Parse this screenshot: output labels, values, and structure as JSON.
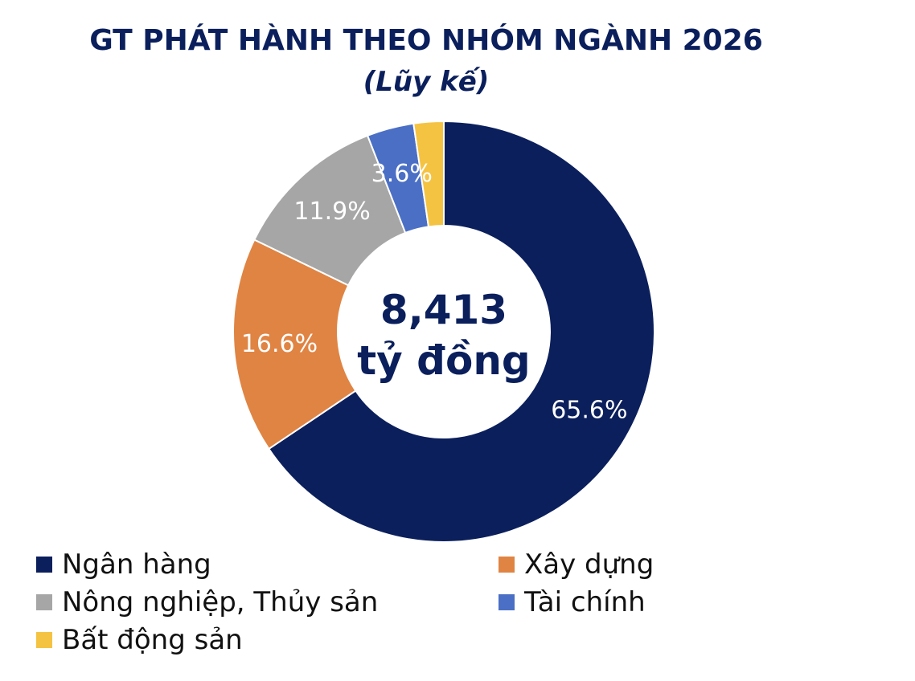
{
  "chart_data": {
    "type": "pie",
    "title": "GT PHÁT HÀNH THEO NHÓM NGÀNH 2026",
    "subtitle": "(Lũy kế)",
    "center_label": {
      "value": "8,413",
      "unit": "tỷ đồng"
    },
    "categories": [
      "Ngân hàng",
      "Xây dựng",
      "Nông nghiệp, Thủy sản",
      "Tài chính",
      "Bất động sản"
    ],
    "values": [
      65.6,
      16.6,
      11.9,
      3.6,
      2.3
    ],
    "data_labels": [
      "65.6%",
      "16.6%",
      "11.9%",
      "3.6%",
      ""
    ],
    "colors": [
      "#0b1f5c",
      "#e08443",
      "#a6a6a6",
      "#4a6fc5",
      "#f5c342"
    ],
    "legend_position": "bottom"
  }
}
